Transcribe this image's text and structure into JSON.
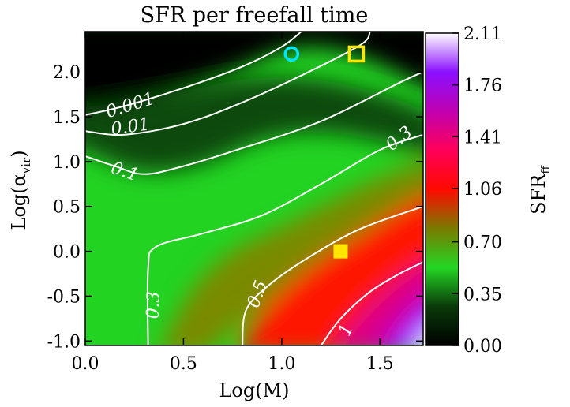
{
  "chart_data": {
    "type": "heatmap",
    "title": "SFR per freefall time",
    "xlabel": "Log(M)",
    "ylabel_base": "Log(α",
    "ylabel_sub": "vir",
    "ylabel_close": ")",
    "xlim": [
      0.0,
      1.72
    ],
    "ylim": [
      -1.05,
      2.45
    ],
    "x_ticks": [
      0.0,
      0.5,
      1.0,
      1.5
    ],
    "x_tick_labels": [
      "0.0",
      "0.5",
      "1.0",
      "1.5"
    ],
    "y_ticks": [
      -1.0,
      -0.5,
      0.0,
      0.5,
      1.0,
      1.5,
      2.0
    ],
    "y_tick_labels": [
      "-1.0",
      "-0.5",
      "0.0",
      "0.5",
      "1.0",
      "1.5",
      "2.0"
    ],
    "colorbar": {
      "label_base": "SFR",
      "label_sub": "ff",
      "range": [
        0.0,
        2.11
      ],
      "tick_values": [
        0.0,
        0.35,
        0.7,
        1.06,
        1.41,
        1.76,
        2.11
      ],
      "tick_labels": [
        "0.00",
        "0.35",
        "0.70",
        "1.06",
        "1.41",
        "1.76",
        "2.11"
      ],
      "colors": [
        "#000000",
        "#0a3a0a",
        "#23d623",
        "#7a7a00",
        "#ff0a00",
        "#ff0058",
        "#c000b0",
        "#8a10ff",
        "#ffffff"
      ]
    },
    "contours": [
      {
        "level_label": "0.001",
        "points": [
          [
            0.0,
            1.52
          ],
          [
            0.2,
            1.62
          ],
          [
            0.5,
            1.82
          ],
          [
            0.8,
            2.06
          ],
          [
            1.0,
            2.28
          ],
          [
            1.1,
            2.45
          ]
        ]
      },
      {
        "level_label": "0.01",
        "points": [
          [
            0.0,
            1.34
          ],
          [
            0.2,
            1.3
          ],
          [
            0.5,
            1.42
          ],
          [
            0.8,
            1.66
          ],
          [
            1.1,
            1.96
          ],
          [
            1.4,
            2.3
          ],
          [
            1.45,
            2.45
          ]
        ]
      },
      {
        "level_label": "0.1",
        "points": [
          [
            0.0,
            1.06
          ],
          [
            0.15,
            0.95
          ],
          [
            0.3,
            0.86
          ],
          [
            0.5,
            0.95
          ],
          [
            0.8,
            1.15
          ],
          [
            1.2,
            1.45
          ],
          [
            1.6,
            1.88
          ],
          [
            1.72,
            2.0
          ]
        ]
      },
      {
        "level_label": "0.3",
        "points": [
          [
            0.32,
            -1.05
          ],
          [
            0.32,
            -0.2
          ],
          [
            0.36,
            0.05
          ],
          [
            0.6,
            0.2
          ],
          [
            0.9,
            0.4
          ],
          [
            1.2,
            0.75
          ],
          [
            1.5,
            1.13
          ],
          [
            1.72,
            1.3
          ]
        ]
      },
      {
        "level_label": "0.5",
        "points": [
          [
            0.8,
            -1.05
          ],
          [
            0.82,
            -0.65
          ],
          [
            0.95,
            -0.35
          ],
          [
            1.15,
            -0.05
          ],
          [
            1.4,
            0.25
          ],
          [
            1.72,
            0.5
          ]
        ]
      },
      {
        "level_label": "1",
        "points": [
          [
            1.2,
            -1.05
          ],
          [
            1.3,
            -0.75
          ],
          [
            1.45,
            -0.45
          ],
          [
            1.6,
            -0.25
          ],
          [
            1.72,
            -0.12
          ]
        ]
      }
    ],
    "contour_labels": [
      {
        "text": "0.001",
        "x": 0.23,
        "y": 1.62,
        "angle": -17
      },
      {
        "text": "0.01",
        "x": 0.23,
        "y": 1.38,
        "angle": -8
      },
      {
        "text": "0.1",
        "x": 0.2,
        "y": 0.88,
        "angle": 18
      },
      {
        "text": "0.3",
        "x": 1.6,
        "y": 1.25,
        "angle": -38
      },
      {
        "text": "0.3",
        "x": 0.35,
        "y": -0.6,
        "angle": -88
      },
      {
        "text": "0.5",
        "x": 0.88,
        "y": -0.48,
        "angle": -70
      },
      {
        "text": "1",
        "x": 1.33,
        "y": -0.88,
        "angle": -67
      }
    ],
    "markers": [
      {
        "shape": "open-circle",
        "x": 1.05,
        "y": 2.2,
        "color": "#00e5ff"
      },
      {
        "shape": "open-square",
        "x": 1.38,
        "y": 2.2,
        "color": "#ffe500"
      },
      {
        "shape": "filled-square",
        "x": 1.3,
        "y": 0.0,
        "color": "#ffe500"
      }
    ]
  }
}
